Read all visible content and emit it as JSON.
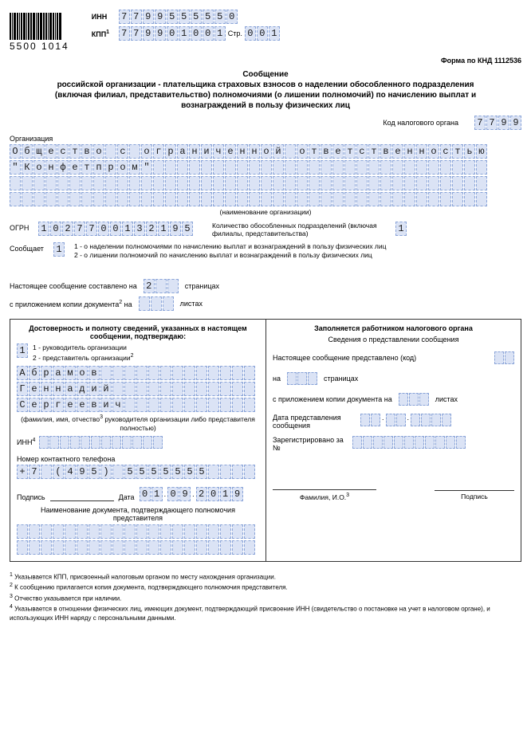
{
  "colors": {
    "cell_bg": "#dbe3f5",
    "cell_border": "#8aa4d8",
    "text": "#000000"
  },
  "barcode_text": "5500 1014",
  "header": {
    "inn_label": "ИНН",
    "kpp_label": "КПП",
    "kpp_sup": "1",
    "page_label": "Стр.",
    "inn": "7799555550",
    "kpp": "779901001",
    "page": "001"
  },
  "form_code_label": "Форма по КНД 1112536",
  "title_lines": [
    "Сообщение",
    "российской организации - плательщика страховых взносов о наделении обособленного подразделения (включая филиал, представительство) полномочиями (о лишении полномочий) по начислению выплат и вознаграждений в пользу физических лиц"
  ],
  "tax_code_label": "Код налогового органа",
  "tax_code": "7799",
  "org_label": "Организация",
  "org_name_lines": [
    "Общество с ограниченной ответственностью",
    "\"Конфетпром\"",
    "",
    ""
  ],
  "org_name_hint": "(наименование организации)",
  "ogrn_label": "ОГРН",
  "ogrn": "1027700132195",
  "subdiv_count_label": "Количество обособленных подразделений (включая филиалы, представительства)",
  "subdiv_count": "1",
  "report_label": "Сообщает",
  "report_value": "1",
  "report_hints": [
    "1 - о наделении полномочиями по начислению выплат и вознаграждений в пользу физических лиц",
    "2 - о лишении полномочий по начислению выплат и вознаграждений в пользу физических лиц"
  ],
  "pages_label_pre": "Настоящее сообщение составлено на",
  "pages_value": "2",
  "pages_label_post": "страницах",
  "attach_label_pre": "с приложением копии документа",
  "attach_sup": "2",
  "attach_label_mid": "на",
  "attach_value": "",
  "attach_label_post": "листах",
  "left_block": {
    "title": "Достоверность и полноту сведений, указанных в настоящем сообщении, подтверждаю:",
    "who_value": "1",
    "who_hints": [
      "1 - руководитель организации",
      "2 - представитель организации"
    ],
    "who_sup": "2",
    "name_lines": [
      "Абрамов",
      "Геннадий",
      "Сергеевич"
    ],
    "name_hint": "(фамилия, имя, отчество",
    "name_hint_sup": "3",
    "name_hint2": " руководителя организации либо представителя полностью)",
    "inn_label": "ИНН",
    "inn_sup": "4",
    "phone_label": "Номер контактного телефона",
    "phone": "+7 (495) 5555555",
    "sign_label": "Подпись",
    "date_label": "Дата",
    "date_d": "01",
    "date_m": "09",
    "date_y": "2019",
    "doc_title": "Наименование документа, подтверждающего полномочия представителя"
  },
  "right_block": {
    "title": "Заполняется работником налогового органа",
    "subtitle": "Сведения о представлении сообщения",
    "line1_pre": "Настоящее сообщение представлено  (код)",
    "line2_pre": "на",
    "line2_post": "страницах",
    "line3_pre": "с приложением копии документа на",
    "line3_post": "листах",
    "date_label": "Дата представления сообщения",
    "reg_label": "Зарегистрировано за №",
    "fio_label": "Фамилия, И.О.",
    "fio_sup": "3",
    "sign_label": "Подпись"
  },
  "footnotes": [
    "Указывается КПП, присвоенный налоговым органом по месту нахождения организации.",
    "К сообщению прилагается копия документа, подтверждающего полномочия представителя.",
    "Отчество указывается при наличии.",
    "Указывается в отношении физических лиц, имеющих документ, подтверждающий присвоение ИНН (свидетельство о постановке на учет в налоговом органе), и использующих ИНН наряду с персональными данными."
  ]
}
